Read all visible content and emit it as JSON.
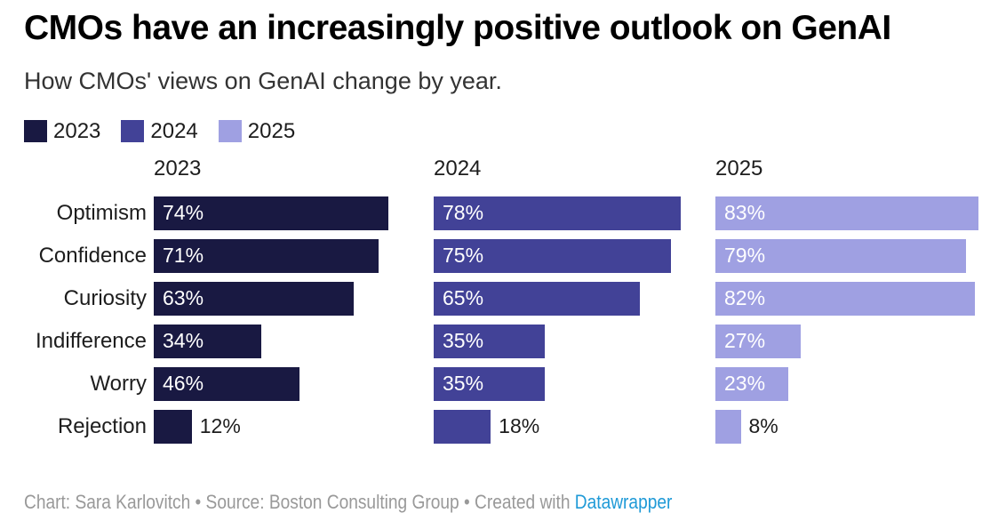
{
  "header": {
    "title": "CMOs have an increasingly positive outlook on GenAI",
    "subtitle": "How CMOs' views on GenAI change by year."
  },
  "chart_data": {
    "type": "bar",
    "layout": "horizontal-grouped-columns",
    "title": "CMOs have an increasingly positive outlook on GenAI",
    "subtitle": "How CMOs' views on GenAI change by year.",
    "categories": [
      "Optimism",
      "Confidence",
      "Curiosity",
      "Indifference",
      "Worry",
      "Rejection"
    ],
    "series": [
      {
        "name": "2023",
        "color": "#191942",
        "values": [
          74,
          71,
          63,
          34,
          46,
          12
        ]
      },
      {
        "name": "2024",
        "color": "#424297",
        "values": [
          78,
          75,
          65,
          35,
          35,
          18
        ]
      },
      {
        "name": "2025",
        "color": "#9fa0e2",
        "values": [
          83,
          79,
          82,
          27,
          23,
          8
        ]
      }
    ],
    "value_suffix": "%",
    "xlim": [
      0,
      100
    ],
    "grid": false,
    "legend_position": "top-left",
    "value_labels": "inside-start, outside for short bars"
  },
  "footer": {
    "credit": "Chart: Sara Karlovitch • Source: Boston Consulting Group • Created with ",
    "link_label": "Datawrapper"
  },
  "colors": {
    "title": "#000000",
    "subtitle": "#333333",
    "text": "#1d1d1d",
    "bar_label_inside": "#ffffff",
    "footer_text": "#999999",
    "link": "#1f9ad7",
    "background": "#ffffff"
  }
}
